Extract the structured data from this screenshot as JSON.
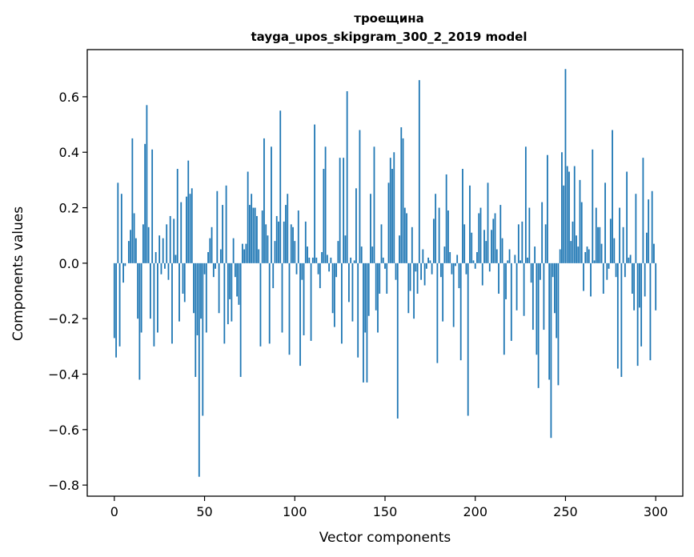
{
  "chart_data": {
    "type": "bar",
    "title": "троещина",
    "subtitle": "tayga_upos_skipgram_300_2_2019 model",
    "xlabel": "Vector components",
    "ylabel": "Components values",
    "xlim": [
      -15,
      315
    ],
    "ylim": [
      -0.84,
      0.77
    ],
    "xticks": [
      0,
      50,
      100,
      150,
      200,
      250,
      300
    ],
    "yticks": [
      -0.8,
      -0.6,
      -0.4,
      -0.2,
      0.0,
      0.2,
      0.4,
      0.6
    ],
    "ytick_labels": [
      "−0.8",
      "−0.6",
      "−0.4",
      "−0.2",
      "0.0",
      "0.2",
      "0.4",
      "0.6"
    ],
    "bar_color": "#1f77b4",
    "grid": false,
    "values": [
      -0.27,
      -0.34,
      0.29,
      -0.3,
      0.25,
      -0.07,
      -0.01,
      0,
      0.08,
      0.12,
      0.45,
      0.18,
      0.09,
      -0.2,
      -0.42,
      -0.25,
      0.14,
      0.43,
      0.57,
      0.13,
      -0.2,
      0.41,
      -0.3,
      0.04,
      -0.25,
      0.1,
      -0.04,
      0.09,
      -0.02,
      0.14,
      -0.06,
      0.17,
      -0.29,
      0.16,
      0.03,
      0.34,
      -0.21,
      0.22,
      -0.11,
      -0.14,
      0.24,
      0.37,
      0.25,
      0.27,
      -0.18,
      -0.41,
      -0.26,
      -0.77,
      -0.2,
      -0.55,
      -0.04,
      -0.25,
      0.04,
      0.09,
      0.13,
      -0.05,
      -0.02,
      0.26,
      -0.18,
      0.05,
      0.21,
      -0.29,
      0.28,
      -0.22,
      -0.13,
      -0.21,
      0.09,
      -0.05,
      -0.12,
      -0.15,
      -0.41,
      0.07,
      0.05,
      0.07,
      0.33,
      0.21,
      0.25,
      0.2,
      0.2,
      0.17,
      0.05,
      -0.3,
      0.19,
      0.45,
      0.14,
      0.1,
      -0.29,
      0.42,
      -0.09,
      0.08,
      0.17,
      0.15,
      0.55,
      -0.25,
      0.15,
      0.21,
      0.25,
      -0.33,
      0.14,
      0.13,
      0.08,
      -0.04,
      0.19,
      -0.37,
      -0.06,
      -0.26,
      0.15,
      0.06,
      0.02,
      -0.28,
      0.02,
      0.5,
      0.02,
      -0.04,
      -0.09,
      0.04,
      0.34,
      0.42,
      0.03,
      -0.03,
      0.02,
      -0.18,
      -0.23,
      -0.05,
      0.08,
      0.38,
      -0.29,
      0.38,
      0.1,
      0.62,
      -0.14,
      0.02,
      -0.21,
      0.01,
      0.27,
      -0.34,
      0.48,
      0.06,
      -0.43,
      -0.25,
      -0.43,
      -0.19,
      0.25,
      0.06,
      0.42,
      -0.17,
      -0.25,
      -0.11,
      0.14,
      0.02,
      -0.02,
      -0.11,
      0.29,
      0.38,
      0.34,
      0.4,
      -0.06,
      -0.56,
      0.1,
      0.49,
      0.45,
      0.2,
      0.18,
      -0.18,
      -0.1,
      0.13,
      -0.2,
      -0.03,
      -0.11,
      0.66,
      -0.06,
      0.05,
      -0.08,
      -0.02,
      0.02,
      0.01,
      -0.04,
      0.16,
      0.25,
      -0.36,
      0.2,
      -0.05,
      -0.21,
      0.06,
      0.32,
      0.19,
      0.04,
      -0.04,
      -0.23,
      -0.01,
      0.03,
      -0.09,
      -0.35,
      0.34,
      0.14,
      -0.04,
      -0.55,
      0.28,
      0.11,
      0.01,
      -0.02,
      0.04,
      0.18,
      0.2,
      -0.08,
      0.12,
      0.08,
      0.29,
      -0.03,
      0.12,
      0.16,
      0.18,
      0.05,
      -0.11,
      0.21,
      0.09,
      -0.33,
      -0.13,
      0.01,
      0.05,
      -0.28,
      0.0,
      0.03,
      -0.17,
      0.14,
      0.01,
      0.15,
      -0.19,
      0.42,
      0.02,
      0.2,
      -0.07,
      -0.24,
      0.06,
      -0.33,
      -0.45,
      -0.06,
      0.22,
      -0.24,
      0.14,
      0.39,
      -0.42,
      -0.63,
      -0.05,
      -0.18,
      -0.27,
      -0.44,
      0.05,
      0.4,
      0.28,
      0.7,
      0.35,
      0.33,
      0.08,
      0.15,
      0.35,
      0.1,
      0.06,
      0.3,
      0.22,
      -0.1,
      0.04,
      0.06,
      0.05,
      -0.12,
      0.41,
      0.01,
      0.2,
      0.13,
      0.13,
      0.07,
      -0.11,
      0.29,
      -0.06,
      -0.02,
      0.16,
      0.48,
      0.09,
      -0.05,
      -0.38,
      0.2,
      -0.41,
      0.13,
      -0.05,
      0.33,
      0.02,
      0.03,
      -0.11,
      -0.17,
      0.25,
      -0.37,
      -0.16,
      -0.3,
      0.38,
      -0.12,
      0.11,
      0.23,
      -0.35,
      0.26,
      0.07,
      -0.17
    ]
  }
}
